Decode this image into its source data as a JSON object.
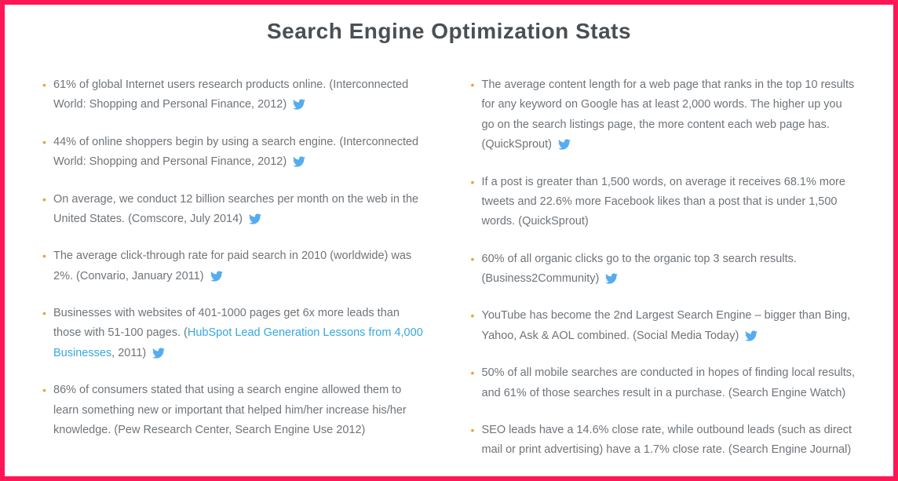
{
  "title": "Search Engine Optimization Stats",
  "colors": {
    "border": "#ff1654",
    "bullet": "#e8a33d",
    "text": "#6f7479",
    "heading": "#4a4f55",
    "link": "#36a8db",
    "twitter": "#55acee"
  },
  "left": [
    {
      "text": "61% of global Internet users research products online. (Interconnected World: Shopping and Personal Finance, 2012)",
      "tweet": true
    },
    {
      "text": "44% of online shoppers begin by using a search engine. (Interconnected World: Shopping and Personal Finance, 2012)",
      "tweet": true
    },
    {
      "text": "On average, we conduct 12 billion searches per month on the web in the United States. (Comscore, July 2014)",
      "tweet": true
    },
    {
      "text": "The average click-through rate for paid search in 2010 (worldwide) was 2%. (Convario, January 2011)",
      "tweet": true
    },
    {
      "pre": "Businesses with websites of 401-1000 pages get 6x more leads than those with 51-100 pages. (",
      "link": "HubSpot Lead Generation Lessons from 4,000 Businesses",
      "post": ", 2011)",
      "tweet": true
    },
    {
      "text": "86% of consumers stated that using a search engine allowed them to learn something new or important that helped him/her increase his/her knowledge. (Pew Research Center, Search Engine Use 2012)",
      "tweet": false
    }
  ],
  "right": [
    {
      "text": "The average content length for a web page that ranks in the top 10 results for any keyword on Google has at least 2,000 words. The higher up you go on the search listings page, the more content each web page has. (QuickSprout)",
      "tweet": true
    },
    {
      "text": "If a post is greater than 1,500 words, on average it receives 68.1% more tweets and 22.6% more Facebook likes than a post that is under 1,500 words. (QuickSprout)",
      "tweet": false
    },
    {
      "text": "60% of all organic clicks go to the organic top 3 search results. (Business2Community)",
      "tweet": true
    },
    {
      "text": "YouTube has become the 2nd Largest Search Engine – bigger than Bing, Yahoo, Ask & AOL combined. (Social Media Today)",
      "tweet": true
    },
    {
      "text": "50% of all mobile searches are conducted in hopes of finding local results, and 61% of those searches result in a purchase. (Search Engine Watch)",
      "tweet": false
    },
    {
      "text": "SEO leads have a 14.6% close rate, while outbound leads (such as direct mail or print advertising) have a 1.7% close rate. (Search Engine Journal)",
      "tweet": false
    }
  ]
}
